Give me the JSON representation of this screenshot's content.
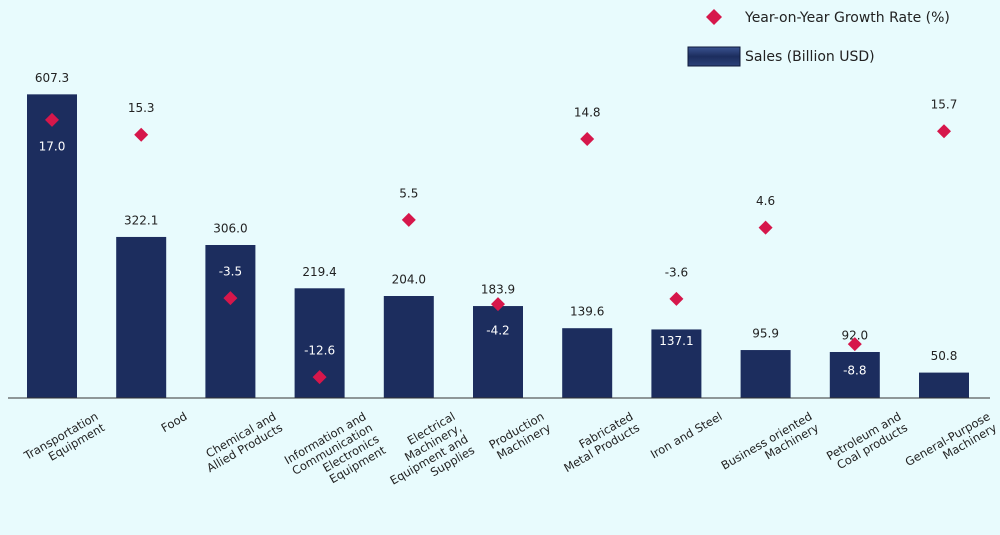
{
  "chart_data": {
    "type": "bar+scatter",
    "categories": [
      "Transportation\nEquipment",
      "Food",
      "Chemical and\nAllied Products",
      "Information and\nCommunication\nElectronics\nEquipment",
      "Electrical\nMachinery,\nEquipment and\nSupplies",
      "Production\nMachinery",
      "Fabricated\nMetal Products",
      "Iron and Steel",
      "Business oriented\nMachinery",
      "Petroleum and\nCoal products",
      "General-Purpose\nMachinery"
    ],
    "series": [
      {
        "name": "Sales (Billion USD)",
        "color": "#1c2d5e",
        "type": "bar",
        "values": [
          607.3,
          322.1,
          306.0,
          219.4,
          204.0,
          183.9,
          139.6,
          137.1,
          95.9,
          92.0,
          50.8
        ],
        "value_labels": [
          "607.3",
          "322.1",
          "306.0",
          "219.4",
          "204.0",
          "183.9",
          "139.6",
          "137.1",
          "95.9",
          "92.0",
          "50.8"
        ]
      },
      {
        "name": "Year-on-Year Growth Rate (%)",
        "color": "#d6174b",
        "type": "scatter",
        "axis": "y2",
        "values": [
          17.0,
          15.3,
          -3.5,
          -12.6,
          5.5,
          -4.2,
          14.8,
          -3.6,
          4.6,
          -8.8,
          15.7
        ],
        "value_labels": [
          "17.0",
          "15.3",
          "-3.5",
          "-12.6",
          "5.5",
          "-4.2",
          "14.8",
          "-3.6",
          "4.6",
          "-8.8",
          "15.7"
        ]
      }
    ],
    "ylim": [
      0,
      796
    ],
    "y2lim": [
      -15,
      30.8
    ],
    "legend": "top-right"
  }
}
